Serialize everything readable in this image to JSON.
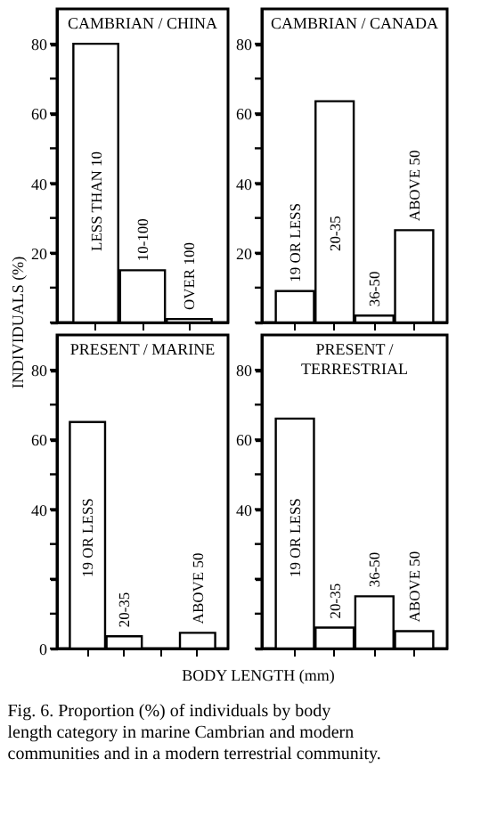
{
  "chart_data": [
    {
      "type": "bar",
      "title": "CAMBRIAN / CHINA",
      "categories": [
        "LESS THAN 10",
        "10-100",
        "OVER 100"
      ],
      "values": [
        80,
        15,
        1
      ],
      "color": "#ffffff",
      "ylim": [
        0,
        90
      ],
      "yticks": [
        {
          "value": 0,
          "label": null
        },
        {
          "value": 10,
          "label": null
        },
        20,
        {
          "value": 30,
          "label": null
        },
        40,
        {
          "value": 50,
          "label": null
        },
        60,
        {
          "value": 70,
          "label": null
        },
        80
      ]
    },
    {
      "type": "bar",
      "title": "CAMBRIAN / CANADA",
      "categories": [
        "19 OR LESS",
        "20-35",
        "36-50",
        "ABOVE 50"
      ],
      "values": [
        9,
        63.5,
        2,
        26.5
      ],
      "color": "#ffffff",
      "ylim": [
        0,
        90
      ],
      "yticks": [
        {
          "value": 0,
          "label": null
        },
        {
          "value": 10,
          "label": null
        },
        20,
        {
          "value": 30,
          "label": null
        },
        40,
        {
          "value": 50,
          "label": null
        },
        60,
        {
          "value": 70,
          "label": null
        },
        80
      ]
    },
    {
      "type": "bar",
      "title": "PRESENT / MARINE",
      "categories": [
        "19 OR LESS",
        "20-35",
        null,
        "ABOVE 50"
      ],
      "values": [
        65,
        3.5,
        null,
        4.5
      ],
      "color": "#ffffff",
      "ylim": [
        0,
        90
      ],
      "ylabel": "INDIVIDUALS (%)",
      "xlabel": "BODY LENGTH (mm)",
      "yticks": [
        0,
        {
          "value": 10,
          "label": null
        },
        {
          "value": 20,
          "label": null
        },
        {
          "value": 30,
          "label": null
        },
        40,
        {
          "value": 50,
          "label": null
        },
        60,
        {
          "value": 70,
          "label": null
        },
        80
      ]
    },
    {
      "type": "bar",
      "title": "PRESENT / TERRESTRIAL",
      "categories": [
        "19 OR LESS",
        "20-35",
        "36-50",
        "ABOVE 50"
      ],
      "values": [
        66,
        6,
        15,
        5
      ],
      "color": "#ffffff",
      "ylim": [
        0,
        90
      ],
      "annotations": [
        "Fig. 6. Proportion (%) of individuals by body length category in marine Cambrian and modern communities and in a modern terrestrial community."
      ],
      "yticks": [
        {
          "value": 0,
          "label": null
        },
        {
          "value": 10,
          "label": null
        },
        {
          "value": 20,
          "label": null
        },
        {
          "value": 30,
          "label": null
        },
        40,
        {
          "value": 50,
          "label": null
        },
        60,
        {
          "value": 70,
          "label": null
        },
        80
      ]
    }
  ]
}
